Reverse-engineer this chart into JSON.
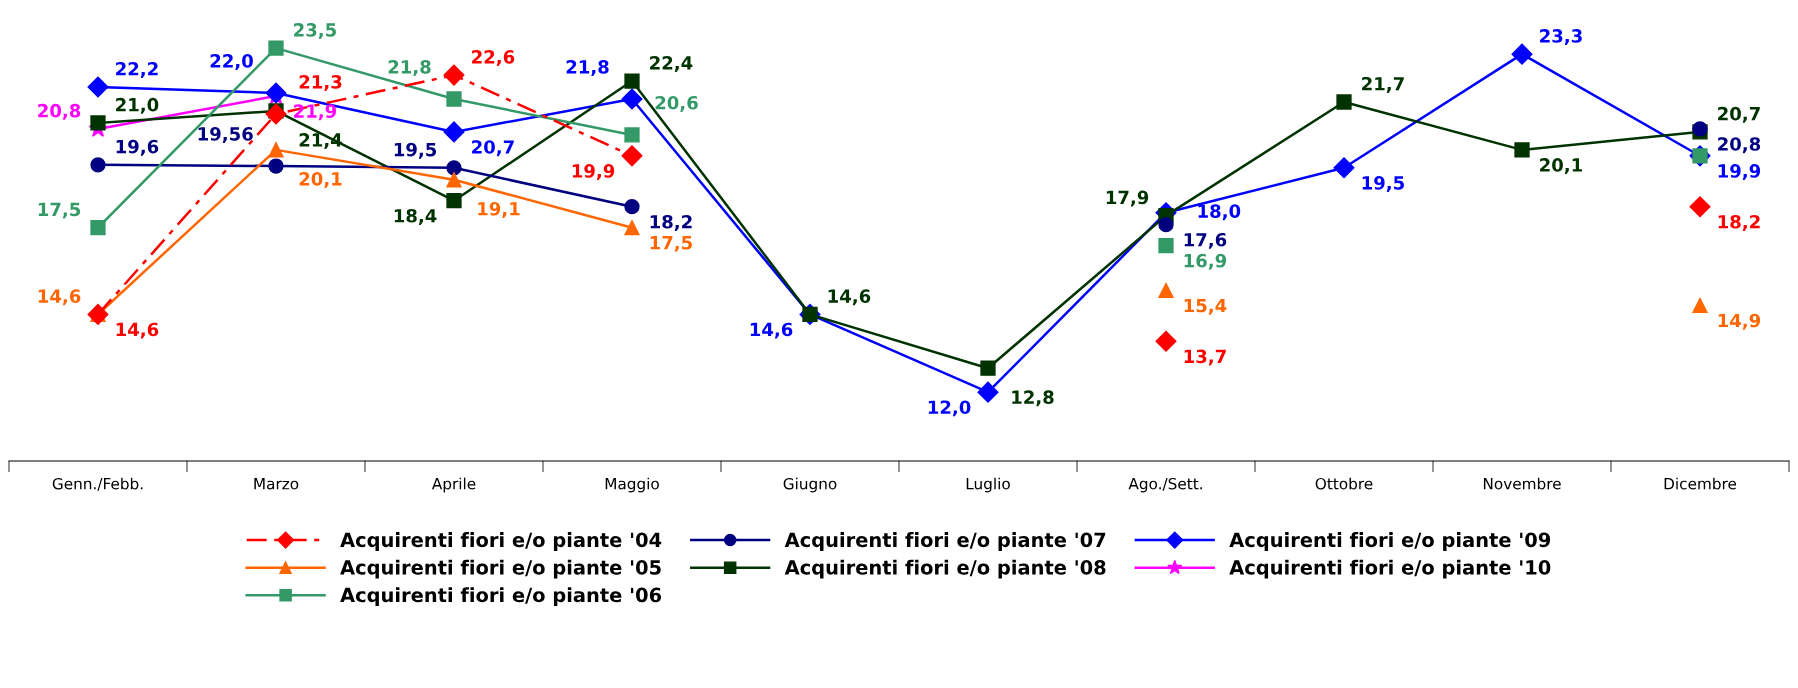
{
  "chart_data": {
    "type": "line",
    "categories": [
      "Genn./Febb.",
      "Marzo",
      "Aprile",
      "Maggio",
      "Giugno",
      "Luglio",
      "Ago./Sett.",
      "Ottobre",
      "Novembre",
      "Dicembre"
    ],
    "series": [
      {
        "name": "Acquirenti fiori e/o piante '04",
        "color": "#ff0000",
        "marker": "diamond",
        "line_style": "dashed",
        "values": [
          14.6,
          21.3,
          22.6,
          19.9,
          null,
          null,
          13.7,
          null,
          null,
          18.2
        ],
        "value_labels": [
          "14,6",
          "21,3",
          "22,6",
          "19,9",
          null,
          null,
          "13,7",
          null,
          null,
          "18,2"
        ]
      },
      {
        "name": "Acquirenti fiori e/o piante '05",
        "color": "#ff6600",
        "marker": "triangle",
        "values": [
          14.6,
          20.1,
          19.1,
          17.5,
          null,
          null,
          15.4,
          null,
          null,
          14.9
        ],
        "value_labels": [
          "14,6",
          "20,1",
          "19,1",
          "17,5",
          null,
          null,
          "15,4",
          null,
          null,
          "14,9"
        ]
      },
      {
        "name": "Acquirenti fiori e/o piante '06",
        "color": "#339966",
        "marker": "square",
        "values": [
          17.5,
          23.5,
          21.8,
          20.6,
          null,
          null,
          16.9,
          null,
          null,
          19.9
        ],
        "value_labels": [
          "17,5",
          "23,5",
          "21,8",
          "20,6",
          null,
          null,
          "16,9",
          null,
          null,
          null
        ]
      },
      {
        "name": "Acquirenti fiori e/o piante '07",
        "color": "#000080",
        "marker": "circle",
        "values": [
          19.6,
          19.56,
          19.5,
          18.2,
          null,
          null,
          17.6,
          null,
          null,
          20.8
        ],
        "value_labels": [
          "19,6",
          "19,56",
          "19,5",
          "18,2",
          null,
          null,
          "17,6",
          null,
          null,
          "20,8"
        ]
      },
      {
        "name": "Acquirenti fiori e/o piante '08",
        "color": "#003300",
        "marker": "square",
        "values": [
          21.0,
          21.4,
          18.4,
          22.4,
          14.6,
          12.8,
          17.9,
          21.7,
          20.1,
          20.7
        ],
        "value_labels": [
          "21,0",
          "21,4",
          "18,4",
          "22,4",
          "14,6",
          "12,8",
          "17,9",
          "21,7",
          "20,1",
          "20,7"
        ]
      },
      {
        "name": "Acquirenti fiori e/o piante '09",
        "color": "#0000ff",
        "marker": "diamond",
        "values": [
          22.2,
          22.0,
          20.7,
          21.8,
          14.6,
          12.0,
          18.0,
          19.5,
          23.3,
          19.9
        ],
        "value_labels": [
          "22,2",
          "22,0",
          "20,7",
          "21,8",
          "14,6",
          "12,0",
          "18,0",
          "19,5",
          "23,3",
          "19,9"
        ]
      },
      {
        "name": "Acquirenti fiori e/o piante '10",
        "color": "#ff00ff",
        "marker": "star",
        "values": [
          20.8,
          21.9,
          null,
          null,
          null,
          null,
          null,
          null,
          null,
          null
        ],
        "value_labels": [
          "20,8",
          "21,9",
          null,
          null,
          null,
          null,
          null,
          null,
          null,
          null
        ]
      }
    ],
    "legend": "bottom",
    "grid": false
  }
}
